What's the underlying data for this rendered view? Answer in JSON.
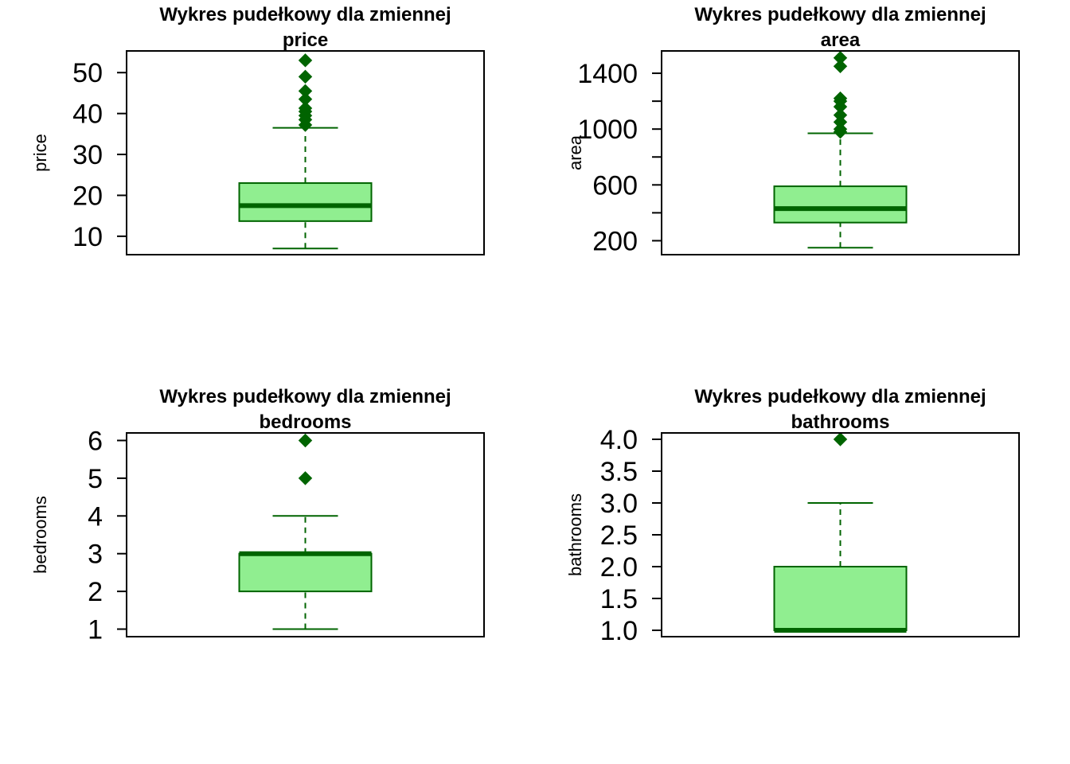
{
  "chart_data": [
    {
      "type": "box",
      "title_line1": "Wykres pudełkowy dla zmiennej",
      "title_line2": "price",
      "ylabel": "price",
      "ylim": [
        5.5,
        55.3
      ],
      "ticks": [
        10,
        20,
        30,
        40,
        50
      ],
      "tick_labels": [
        "10",
        "20",
        "30",
        "40",
        "50"
      ],
      "box": {
        "whisker_low": 7,
        "q1": 13.7,
        "median": 17.5,
        "q3": 23,
        "whisker_high": 36.5
      },
      "outliers": [
        37.2,
        38.5,
        39.5,
        40.5,
        41.3,
        43.5,
        45.5,
        49,
        53
      ],
      "fill_color": "#90EE90",
      "line_color": "#006400"
    },
    {
      "type": "box",
      "title_line1": "Wykres pudełkowy dla zmiennej",
      "title_line2": "area",
      "ylabel": "area",
      "ylim": [
        100,
        1560
      ],
      "ticks": [
        200,
        600,
        1000,
        1400
      ],
      "tick_labels": [
        "200",
        "600",
        "1000",
        "1400"
      ],
      "minor_ticks": [
        400,
        800,
        1200
      ],
      "box": {
        "whisker_low": 150,
        "q1": 330,
        "median": 430,
        "q3": 590,
        "whisker_high": 970
      },
      "outliers": [
        980,
        1000,
        1050,
        1100,
        1160,
        1200,
        1220,
        1450,
        1510
      ],
      "fill_color": "#90EE90",
      "line_color": "#006400"
    },
    {
      "type": "box",
      "title_line1": "Wykres pudełkowy dla zmiennej",
      "title_line2": "bedrooms",
      "ylabel": "bedrooms",
      "ylim": [
        0.8,
        6.2
      ],
      "ticks": [
        1,
        2,
        3,
        4,
        5,
        6
      ],
      "tick_labels": [
        "1",
        "2",
        "3",
        "4",
        "5",
        "6"
      ],
      "box": {
        "whisker_low": 1,
        "q1": 2,
        "median": 3,
        "q3": 3,
        "whisker_high": 4
      },
      "outliers": [
        5,
        6
      ],
      "fill_color": "#90EE90",
      "line_color": "#006400"
    },
    {
      "type": "box",
      "title_line1": "Wykres pudełkowy dla zmiennej",
      "title_line2": "bathrooms",
      "ylabel": "bathrooms",
      "ylim": [
        0.9,
        4.1
      ],
      "ticks": [
        1.0,
        1.5,
        2.0,
        2.5,
        3.0,
        3.5,
        4.0
      ],
      "tick_labels": [
        "1.0",
        "1.5",
        "2.0",
        "2.5",
        "3.0",
        "3.5",
        "4.0"
      ],
      "box": {
        "whisker_low": 1,
        "q1": 1,
        "median": 1,
        "q3": 2,
        "whisker_high": 3
      },
      "outliers": [
        4
      ],
      "fill_color": "#90EE90",
      "line_color": "#006400"
    }
  ]
}
